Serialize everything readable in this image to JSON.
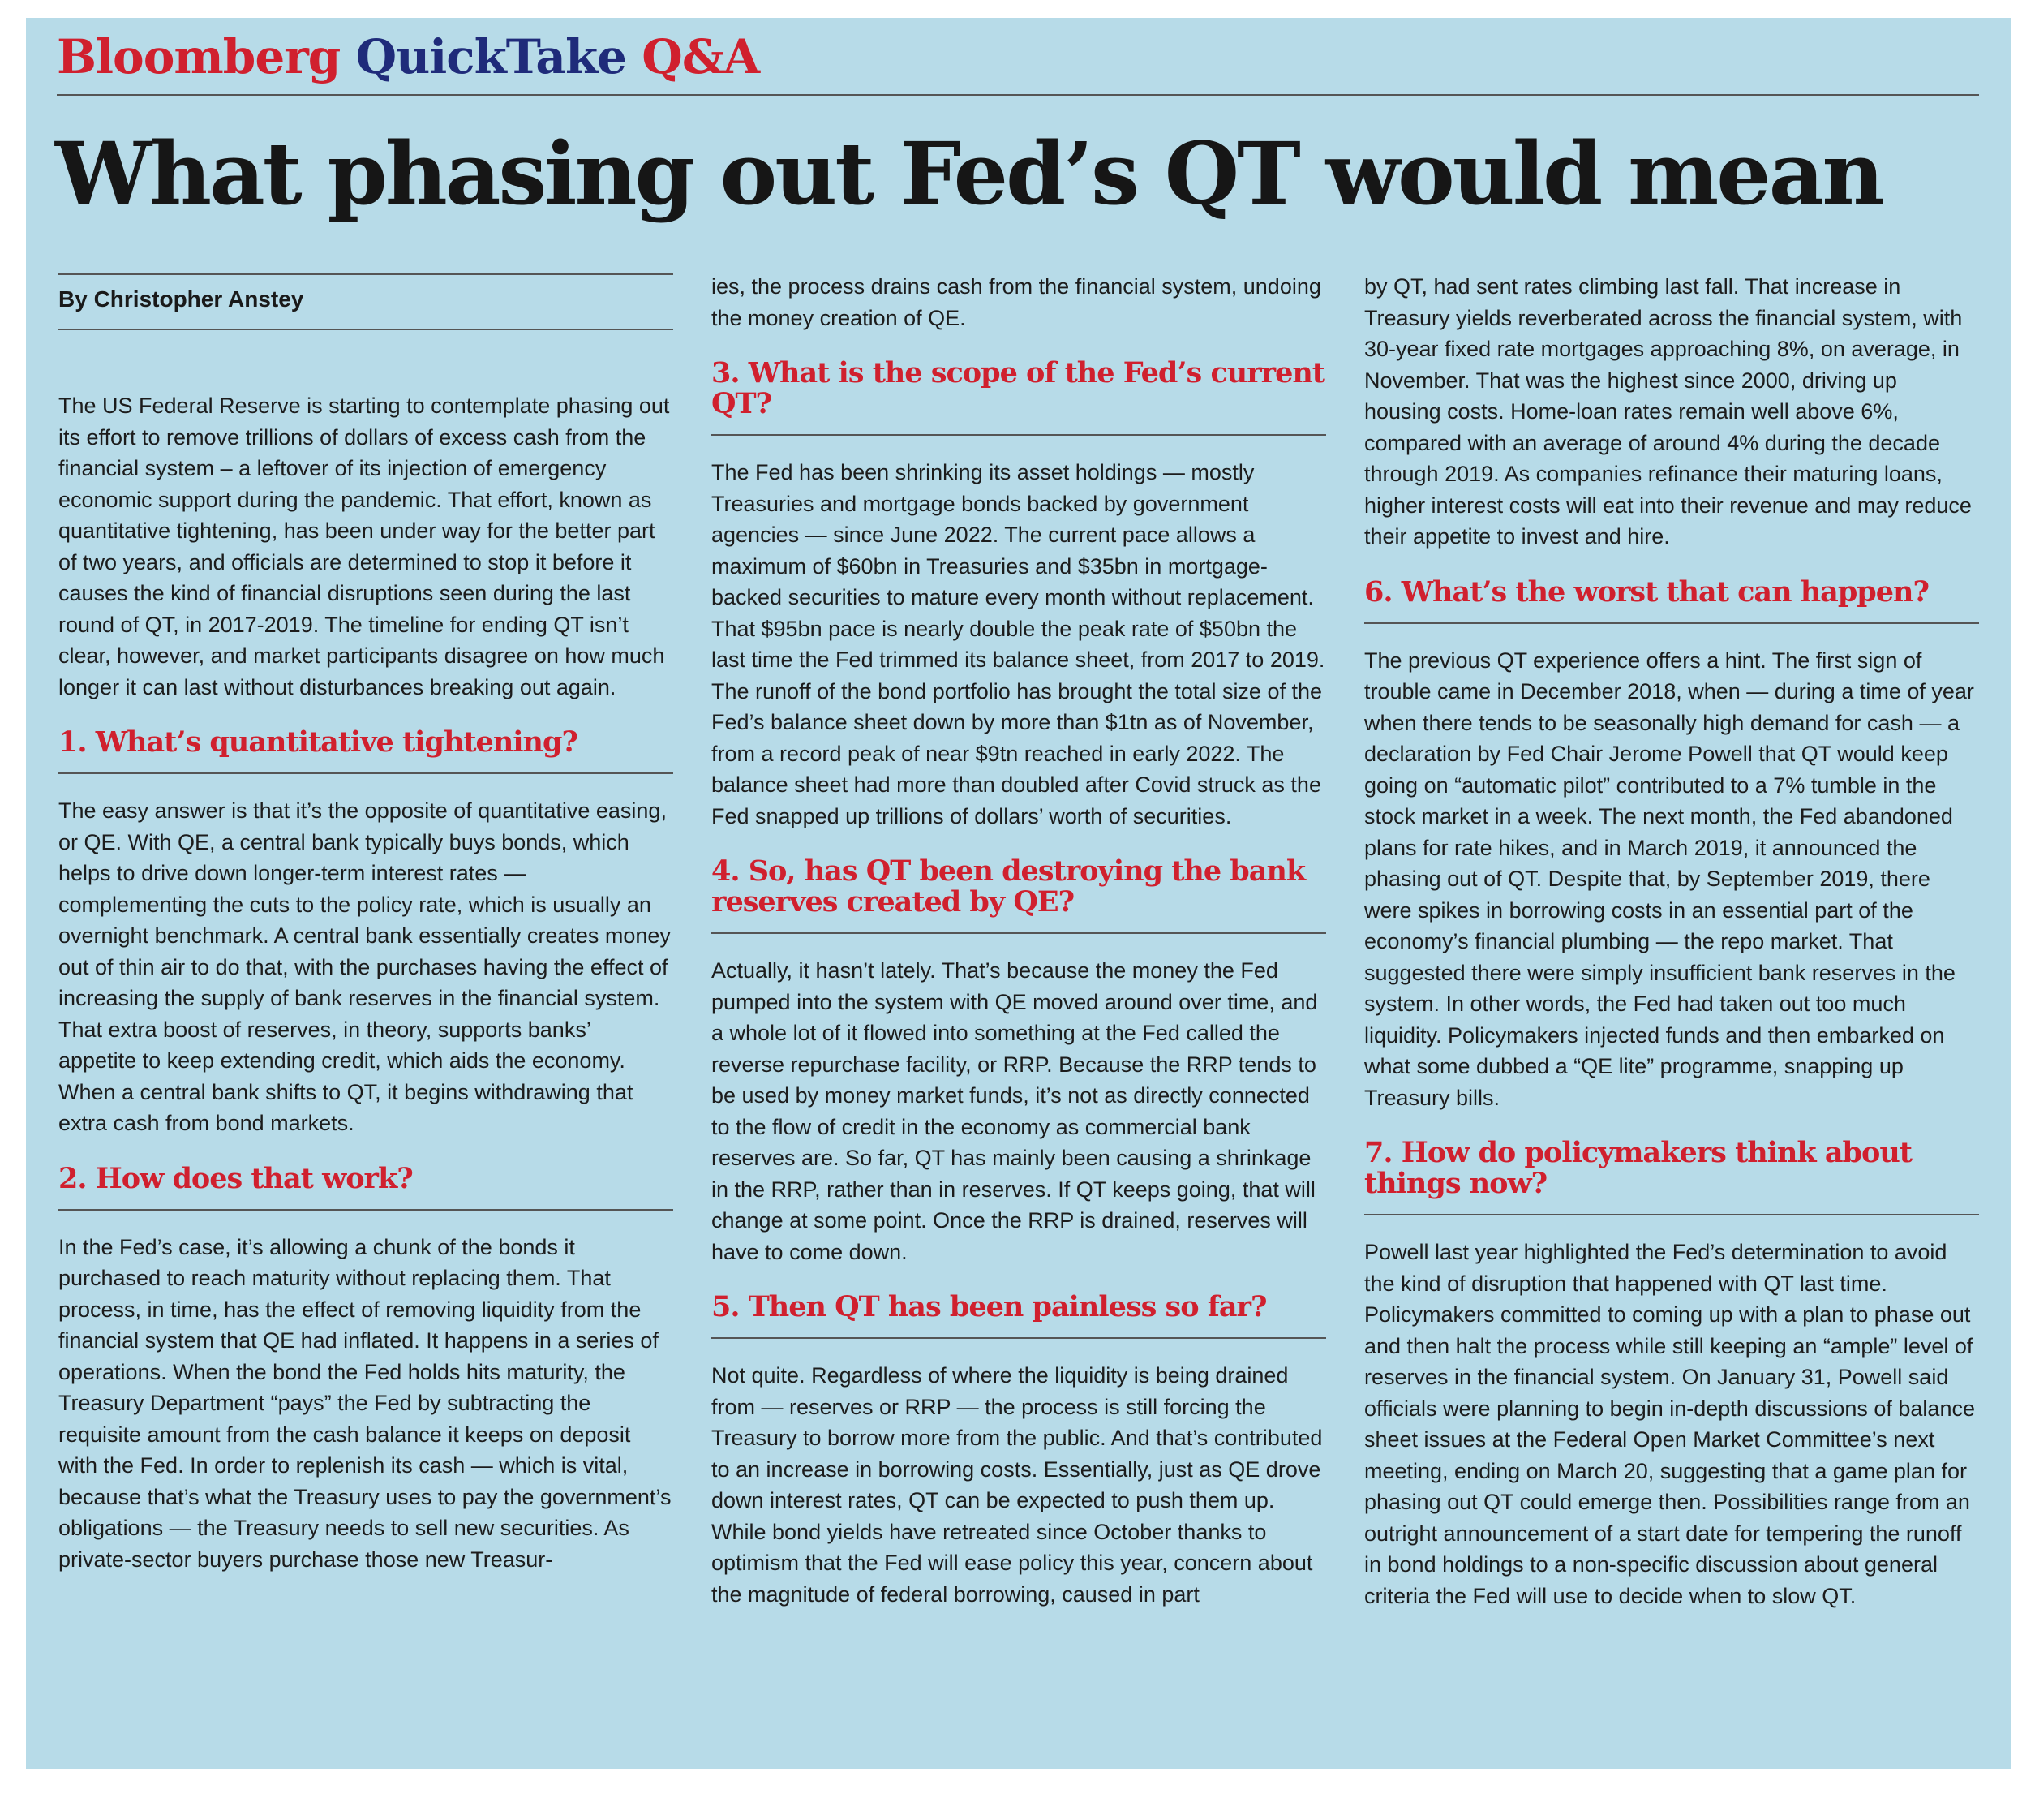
{
  "masthead": {
    "brand": "Bloomberg",
    "product": "QuickTake",
    "section": "Q&A"
  },
  "headline": "What phasing out Fed’s QT would mean",
  "byline": "By Christopher Anstey",
  "intro": "The US Federal Reserve is starting to contemplate phasing out its effort to remove trillions of dollars of excess cash from the financial system – a leftover of its injection of emergency economic support during the pandemic. That effort, known as quantitative tightening, has been under way for the better part of two years, and officials are determined to stop it before it causes the kind of financial disruptions seen during the last round of QT, in 2017-2019. The timeline for ending QT isn’t clear, however, and market participants disagree on how much longer it can last without disturbances breaking out again.",
  "sections": [
    {
      "question": "1. What’s quantitative tightening?",
      "answer": "The easy answer is that it’s the opposite of quantitative easing, or QE. With QE, a central bank typically buys bonds, which helps to drive down longer-term interest rates — complementing the cuts to the policy rate, which is usually an overnight benchmark. A central bank essentially creates money out of thin air to do that, with the purchases having the effect of increasing the supply of bank reserves in the financial system. That extra boost of reserves, in theory, supports banks’ appetite to keep extending credit, which aids the economy. When a central bank shifts to QT, it begins withdrawing that extra cash from bond markets."
    },
    {
      "question": "2. How does that work?",
      "answer": "In the Fed’s case, it’s allowing a chunk of the bonds it purchased to reach maturity without replacing them. That process, in time, has the effect of removing liquidity from the financial system that QE had inflated. It happens in a series of operations. When the bond the Fed holds hits maturity, the Treasury Department “pays” the Fed by subtracting the requisite amount from the cash balance it keeps on deposit with the Fed. In order to replenish its cash — which is vital, because that’s what the Treasury uses to pay the government’s obligations — the Treasury needs to sell new securities. As private-sector buyers purchase those new Treasur-",
      "answer_cont": "ies, the process drains cash from the financial system, undoing the money creation of QE."
    },
    {
      "question": "3. What is the scope of the Fed’s current QT?",
      "answer": "The Fed has been shrinking its asset holdings — mostly Treasuries and mortgage bonds backed by government agencies — since June 2022. The current pace allows a maximum of $60bn in Treasuries and $35bn in mortgage-backed securities to mature every month without replacement. That $95bn pace is nearly double the peak rate of $50bn the last time the Fed trimmed its balance sheet, from 2017 to 2019. The runoff of the bond portfolio has brought the total size of the Fed’s balance sheet down by more than $1tn as of November, from a record peak of near $9tn reached in early 2022. The balance sheet had more than doubled after Covid struck as the Fed snapped up trillions of dollars’ worth of securities."
    },
    {
      "question": "4. So, has QT been destroying the bank reserves created by QE?",
      "answer": "Actually, it hasn’t lately. That’s because the money the Fed pumped into the system with QE moved around over time, and a whole lot of it flowed into something at the Fed called the reverse repurchase facility, or RRP. Because the RRP tends to be used by money market funds, it’s not as directly connected to the flow of credit in the economy as commercial bank reserves are. So far, QT has mainly been causing a shrinkage in the RRP, rather than in reserves. If QT keeps going, that will change at some point. Once the RRP is drained, reserves will have to come down."
    },
    {
      "question": "5. Then QT has been painless so far?",
      "answer": "Not quite. Regardless of where the liquidity is being drained from — reserves or RRP — the process is still forcing the Treasury to borrow more from the public. And that’s contributed to an increase in borrowing costs. Essentially, just as QE drove down interest rates, QT can be expected to push them up. While bond yields have retreated since October thanks to optimism that the Fed will ease policy this year, concern about the magnitude of federal borrowing, caused in part",
      "answer_cont": "by QT, had sent rates climbing last fall. That increase in Treasury yields reverberated across the financial system, with 30-year fixed rate mortgages approaching 8%, on average, in November. That was the highest since 2000, driving up housing costs. Home-loan rates remain well above 6%, compared with an average of around 4% during the decade through 2019. As companies refinance their maturing loans, higher interest costs will eat into their revenue and may reduce their appetite to invest and hire."
    },
    {
      "question": "6. What’s the worst that can happen?",
      "answer": "The previous QT experience offers a hint. The first sign of trouble came in December 2018, when — during a time of year when there tends to be seasonally high demand for cash — a declaration by Fed Chair Jerome Powell that QT would keep going on “automatic pilot” contributed to a 7% tumble in the stock market in a week. The next month, the Fed abandoned plans for rate hikes, and in March 2019, it announced the phasing out of QT. Despite that, by September 2019, there were spikes in borrowing costs in an essential part of the economy’s financial plumbing — the repo market. That suggested there were simply insufficient bank reserves in the system. In other words, the Fed had taken out too much liquidity. Policymakers injected funds and then embarked on what some dubbed a “QE lite” programme, snapping up Treasury bills."
    },
    {
      "question": "7. How do policymakers think about things now?",
      "answer": "Powell last year highlighted the Fed’s determination to avoid the kind of disruption that happened with QT last time. Policymakers committed to coming up with a plan to phase out and then halt the process while still keeping an “ample” level of reserves in the financial system. On January 31, Powell said officials were planning to begin in-depth discussions of balance sheet issues at the Federal Open Market Committee’s next meeting, ending on March 20, suggesting that a game plan for phasing out QT could emerge then. Possibilities range from an outright announcement of a start date for tempering the runoff in bond holdings to a non-specific discussion about general criteria the Fed will use to decide when to slow QT."
    }
  ]
}
